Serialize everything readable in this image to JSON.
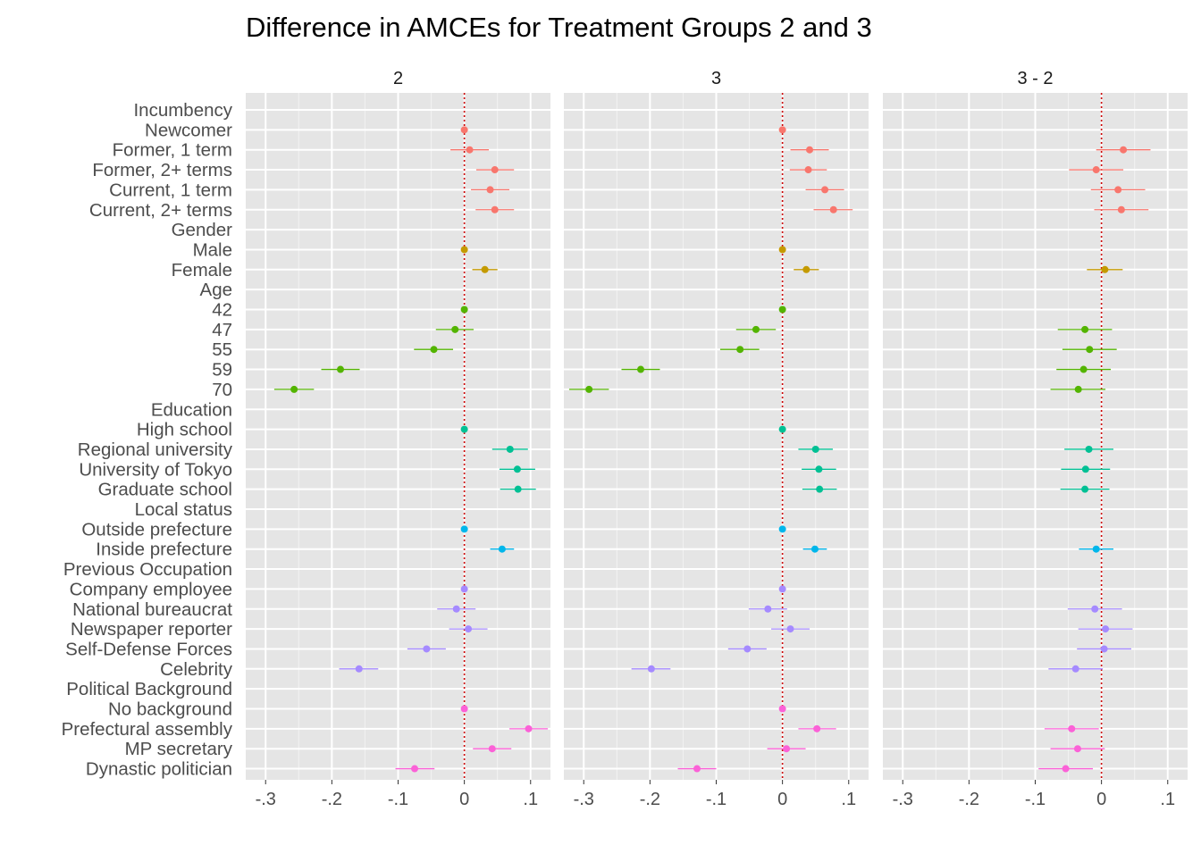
{
  "chart_data": {
    "type": "scatter",
    "subtype": "coefficient-plot-with-error-bars",
    "title": "Difference in AMCEs for Treatment Groups 2 and 3",
    "xlabel": "",
    "ylabel": "",
    "xlim": [
      -0.33,
      0.13
    ],
    "x_ticks": [
      -0.3,
      -0.2,
      -0.1,
      0,
      0.1
    ],
    "x_tick_labels": [
      "-.3",
      "-.2",
      "-.1",
      "0",
      ".1"
    ],
    "reference_line": 0,
    "grid": true,
    "legend": "none",
    "colors": {
      "Incumbency": "#F8766D",
      "Gender": "#C49A00",
      "Age": "#53B400",
      "Education": "#00C094",
      "Local status": "#00B6EB",
      "Previous Occupation": "#A58AFF",
      "Political Background": "#FB61D7",
      "reference_line": "#cc0000",
      "panel_bg": "#e5e5e5"
    },
    "rows": [
      {
        "label": "Incumbency",
        "header": true
      },
      {
        "label": "Newcomer",
        "group": "Incumbency"
      },
      {
        "label": "Former, 1 term",
        "group": "Incumbency"
      },
      {
        "label": "Former, 2+ terms",
        "group": "Incumbency"
      },
      {
        "label": "Current, 1 term",
        "group": "Incumbency"
      },
      {
        "label": "Current, 2+ terms",
        "group": "Incumbency"
      },
      {
        "label": "Gender",
        "header": true
      },
      {
        "label": "Male",
        "group": "Gender"
      },
      {
        "label": "Female",
        "group": "Gender"
      },
      {
        "label": "Age",
        "header": true
      },
      {
        "label": "42",
        "group": "Age"
      },
      {
        "label": "47",
        "group": "Age"
      },
      {
        "label": "55",
        "group": "Age"
      },
      {
        "label": "59",
        "group": "Age"
      },
      {
        "label": "70",
        "group": "Age"
      },
      {
        "label": "Education",
        "header": true
      },
      {
        "label": "High school",
        "group": "Education"
      },
      {
        "label": "Regional university",
        "group": "Education"
      },
      {
        "label": "University of Tokyo",
        "group": "Education"
      },
      {
        "label": "Graduate school",
        "group": "Education"
      },
      {
        "label": "Local status",
        "header": true
      },
      {
        "label": "Outside prefecture",
        "group": "Local status"
      },
      {
        "label": "Inside prefecture",
        "group": "Local status"
      },
      {
        "label": "Previous Occupation",
        "header": true
      },
      {
        "label": "Company employee",
        "group": "Previous Occupation"
      },
      {
        "label": "National bureaucrat",
        "group": "Previous Occupation"
      },
      {
        "label": "Newspaper reporter",
        "group": "Previous Occupation"
      },
      {
        "label": "Self-Defense Forces",
        "group": "Previous Occupation"
      },
      {
        "label": "Celebrity",
        "group": "Previous Occupation"
      },
      {
        "label": "Political Background",
        "header": true
      },
      {
        "label": "No background",
        "group": "Political Background"
      },
      {
        "label": "Prefectural assembly",
        "group": "Political Background"
      },
      {
        "label": "MP secretary",
        "group": "Political Background"
      },
      {
        "label": "Dynastic politician",
        "group": "Political Background"
      }
    ],
    "panels": [
      {
        "name": "2",
        "points": [
          {
            "label": "Newcomer",
            "est": 0,
            "lo": 0,
            "hi": 0
          },
          {
            "label": "Former, 1 term",
            "est": 0.008,
            "lo": -0.021,
            "hi": 0.037
          },
          {
            "label": "Former, 2+ terms",
            "est": 0.046,
            "lo": 0.018,
            "hi": 0.075
          },
          {
            "label": "Current, 1 term",
            "est": 0.039,
            "lo": 0.01,
            "hi": 0.068
          },
          {
            "label": "Current, 2+ terms",
            "est": 0.046,
            "lo": 0.017,
            "hi": 0.075
          },
          {
            "label": "Male",
            "est": 0,
            "lo": 0,
            "hi": 0
          },
          {
            "label": "Female",
            "est": 0.031,
            "lo": 0.012,
            "hi": 0.05
          },
          {
            "label": "42",
            "est": 0,
            "lo": 0,
            "hi": 0
          },
          {
            "label": "47",
            "est": -0.014,
            "lo": -0.043,
            "hi": 0.014
          },
          {
            "label": "55",
            "est": -0.046,
            "lo": -0.076,
            "hi": -0.017
          },
          {
            "label": "59",
            "est": -0.187,
            "lo": -0.216,
            "hi": -0.158
          },
          {
            "label": "70",
            "est": -0.257,
            "lo": -0.287,
            "hi": -0.227
          },
          {
            "label": "High school",
            "est": 0,
            "lo": 0,
            "hi": 0
          },
          {
            "label": "Regional university",
            "est": 0.069,
            "lo": 0.042,
            "hi": 0.096
          },
          {
            "label": "University of Tokyo",
            "est": 0.08,
            "lo": 0.053,
            "hi": 0.107
          },
          {
            "label": "Graduate school",
            "est": 0.081,
            "lo": 0.054,
            "hi": 0.108
          },
          {
            "label": "Outside prefecture",
            "est": 0,
            "lo": 0,
            "hi": 0
          },
          {
            "label": "Inside prefecture",
            "est": 0.057,
            "lo": 0.039,
            "hi": 0.075
          },
          {
            "label": "Company employee",
            "est": 0,
            "lo": 0,
            "hi": 0
          },
          {
            "label": "National bureaucrat",
            "est": -0.012,
            "lo": -0.041,
            "hi": 0.017
          },
          {
            "label": "Newspaper reporter",
            "est": 0.006,
            "lo": -0.023,
            "hi": 0.035
          },
          {
            "label": "Self-Defense Forces",
            "est": -0.057,
            "lo": -0.086,
            "hi": -0.028
          },
          {
            "label": "Celebrity",
            "est": -0.159,
            "lo": -0.189,
            "hi": -0.13
          },
          {
            "label": "No background",
            "est": 0,
            "lo": 0,
            "hi": 0
          },
          {
            "label": "Prefectural assembly",
            "est": 0.097,
            "lo": 0.068,
            "hi": 0.126
          },
          {
            "label": "MP secretary",
            "est": 0.042,
            "lo": 0.013,
            "hi": 0.071
          },
          {
            "label": "Dynastic politician",
            "est": -0.075,
            "lo": -0.104,
            "hi": -0.045
          }
        ]
      },
      {
        "name": "3",
        "points": [
          {
            "label": "Newcomer",
            "est": 0,
            "lo": 0,
            "hi": 0
          },
          {
            "label": "Former, 1 term",
            "est": 0.041,
            "lo": 0.012,
            "hi": 0.07
          },
          {
            "label": "Former, 2+ terms",
            "est": 0.039,
            "lo": 0.011,
            "hi": 0.067
          },
          {
            "label": "Current, 1 term",
            "est": 0.064,
            "lo": 0.035,
            "hi": 0.093
          },
          {
            "label": "Current, 2+ terms",
            "est": 0.077,
            "lo": 0.047,
            "hi": 0.106
          },
          {
            "label": "Male",
            "est": 0,
            "lo": 0,
            "hi": 0
          },
          {
            "label": "Female",
            "est": 0.036,
            "lo": 0.017,
            "hi": 0.055
          },
          {
            "label": "42",
            "est": 0,
            "lo": 0,
            "hi": 0
          },
          {
            "label": "47",
            "est": -0.04,
            "lo": -0.07,
            "hi": -0.01
          },
          {
            "label": "55",
            "est": -0.064,
            "lo": -0.094,
            "hi": -0.035
          },
          {
            "label": "59",
            "est": -0.214,
            "lo": -0.243,
            "hi": -0.185
          },
          {
            "label": "70",
            "est": -0.292,
            "lo": -0.322,
            "hi": -0.262
          },
          {
            "label": "High school",
            "est": 0,
            "lo": 0,
            "hi": 0
          },
          {
            "label": "Regional university",
            "est": 0.05,
            "lo": 0.024,
            "hi": 0.076
          },
          {
            "label": "University of Tokyo",
            "est": 0.055,
            "lo": 0.029,
            "hi": 0.081
          },
          {
            "label": "Graduate school",
            "est": 0.056,
            "lo": 0.03,
            "hi": 0.082
          },
          {
            "label": "Outside prefecture",
            "est": 0,
            "lo": 0,
            "hi": 0
          },
          {
            "label": "Inside prefecture",
            "est": 0.049,
            "lo": 0.031,
            "hi": 0.067
          },
          {
            "label": "Company employee",
            "est": 0,
            "lo": 0,
            "hi": 0
          },
          {
            "label": "National bureaucrat",
            "est": -0.022,
            "lo": -0.051,
            "hi": 0.007
          },
          {
            "label": "Newspaper reporter",
            "est": 0.012,
            "lo": -0.017,
            "hi": 0.041
          },
          {
            "label": "Self-Defense Forces",
            "est": -0.053,
            "lo": -0.082,
            "hi": -0.024
          },
          {
            "label": "Celebrity",
            "est": -0.198,
            "lo": -0.228,
            "hi": -0.169
          },
          {
            "label": "No background",
            "est": 0,
            "lo": 0,
            "hi": 0
          },
          {
            "label": "Prefectural assembly",
            "est": 0.052,
            "lo": 0.024,
            "hi": 0.081
          },
          {
            "label": "MP secretary",
            "est": 0.006,
            "lo": -0.023,
            "hi": 0.035
          },
          {
            "label": "Dynastic politician",
            "est": -0.129,
            "lo": -0.158,
            "hi": -0.1
          }
        ]
      },
      {
        "name": "3 - 2",
        "points": [
          {
            "label": "Former, 1 term",
            "est": 0.033,
            "lo": -0.008,
            "hi": 0.074
          },
          {
            "label": "Former, 2+ terms",
            "est": -0.008,
            "lo": -0.049,
            "hi": 0.033
          },
          {
            "label": "Current, 1 term",
            "est": 0.025,
            "lo": -0.016,
            "hi": 0.066
          },
          {
            "label": "Current, 2+ terms",
            "est": 0.03,
            "lo": -0.011,
            "hi": 0.071
          },
          {
            "label": "Female",
            "est": 0.005,
            "lo": -0.022,
            "hi": 0.032
          },
          {
            "label": "47",
            "est": -0.025,
            "lo": -0.066,
            "hi": 0.016
          },
          {
            "label": "55",
            "est": -0.018,
            "lo": -0.059,
            "hi": 0.023
          },
          {
            "label": "59",
            "est": -0.027,
            "lo": -0.068,
            "hi": 0.014
          },
          {
            "label": "70",
            "est": -0.035,
            "lo": -0.077,
            "hi": 0.006
          },
          {
            "label": "Regional university",
            "est": -0.019,
            "lo": -0.056,
            "hi": 0.018
          },
          {
            "label": "University of Tokyo",
            "est": -0.024,
            "lo": -0.061,
            "hi": 0.013
          },
          {
            "label": "Graduate school",
            "est": -0.025,
            "lo": -0.062,
            "hi": 0.012
          },
          {
            "label": "Inside prefecture",
            "est": -0.008,
            "lo": -0.034,
            "hi": 0.018
          },
          {
            "label": "National bureaucrat",
            "est": -0.01,
            "lo": -0.051,
            "hi": 0.031
          },
          {
            "label": "Newspaper reporter",
            "est": 0.006,
            "lo": -0.035,
            "hi": 0.047
          },
          {
            "label": "Self-Defense Forces",
            "est": 0.004,
            "lo": -0.037,
            "hi": 0.045
          },
          {
            "label": "Celebrity",
            "est": -0.039,
            "lo": -0.08,
            "hi": 0.002
          },
          {
            "label": "Prefectural assembly",
            "est": -0.045,
            "lo": -0.086,
            "hi": -0.004
          },
          {
            "label": "MP secretary",
            "est": -0.036,
            "lo": -0.077,
            "hi": 0.005
          },
          {
            "label": "Dynastic politician",
            "est": -0.054,
            "lo": -0.095,
            "hi": -0.013
          }
        ]
      }
    ]
  }
}
